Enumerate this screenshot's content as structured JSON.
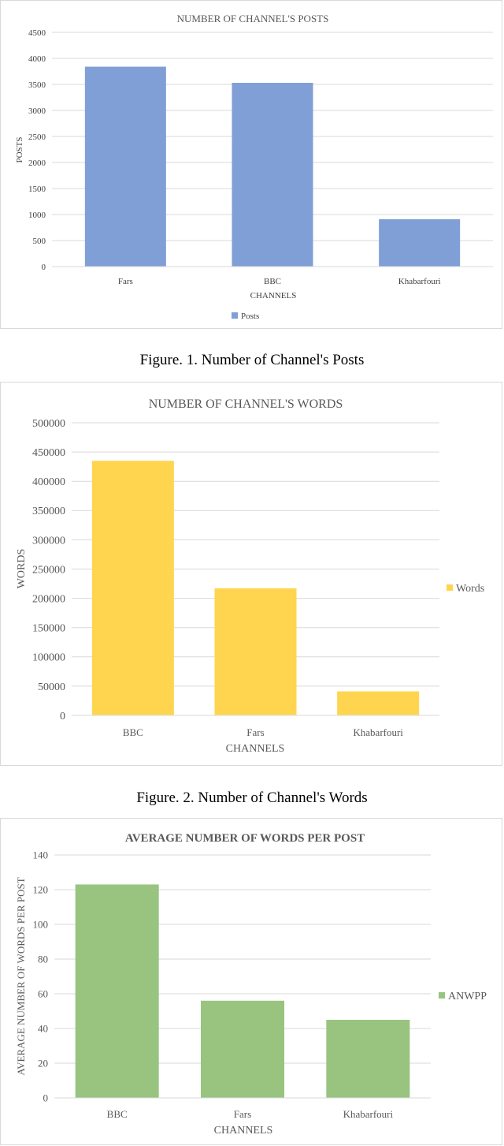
{
  "charts": [
    {
      "caption": "Figure. 1.   Number of Channel's Posts",
      "bar_color": "#7f9fd6",
      "chart_data": {
        "type": "bar",
        "title": "NUMBER OF CHANNEL'S POSTS",
        "xlabel": "CHANNELS",
        "ylabel": "POSTS",
        "categories": [
          "Fars",
          "BBC",
          "Khabarfouri"
        ],
        "series": [
          {
            "name": "Posts",
            "values": [
              3840,
              3530,
              910
            ]
          }
        ],
        "ylim": [
          0,
          4500
        ],
        "ticks": [
          0,
          500,
          1000,
          1500,
          2000,
          2500,
          3000,
          3500,
          4000,
          4500
        ],
        "grid": true,
        "legend": "bottom"
      }
    },
    {
      "caption": "Figure. 2.   Number of Channel's Words",
      "bar_color": "#ffd54f",
      "chart_data": {
        "type": "bar",
        "title": "NUMBER OF CHANNEL'S WORDS",
        "xlabel": "CHANNELS",
        "ylabel": "WORDS",
        "categories": [
          "BBC",
          "Fars",
          "Khabarfouri"
        ],
        "series": [
          {
            "name": "Words",
            "values": [
              435000,
              217000,
              41000
            ]
          }
        ],
        "ylim": [
          0,
          500000
        ],
        "ticks": [
          0,
          50000,
          100000,
          150000,
          200000,
          250000,
          300000,
          350000,
          400000,
          450000,
          500000
        ],
        "grid": true,
        "legend": "right"
      }
    },
    {
      "bar_color": "#98c47f",
      "chart_data": {
        "type": "bar",
        "title": "AVERAGE NUMBER OF WORDS PER POST",
        "xlabel": "CHANNELS",
        "ylabel": "AVERAGE NUMBER OF WORDS PER POST",
        "categories": [
          "BBC",
          "Fars",
          "Khabarfouri"
        ],
        "series": [
          {
            "name": "ANWPP",
            "values": [
              123,
              56,
              45
            ]
          }
        ],
        "ylim": [
          0,
          140
        ],
        "ticks": [
          0,
          20,
          40,
          60,
          80,
          100,
          120,
          140
        ],
        "grid": true,
        "legend": "right"
      }
    }
  ]
}
